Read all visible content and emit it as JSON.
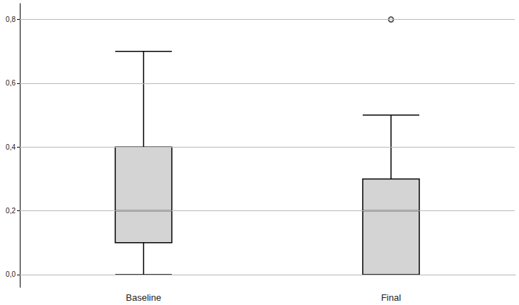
{
  "chart_data": {
    "type": "boxplot",
    "categories": [
      "Baseline",
      "Final"
    ],
    "boxes": [
      [
        0,
        0.1,
        0.2,
        0.4,
        0.7
      ],
      [
        0,
        0,
        0.2,
        0.3,
        0.5
      ]
    ],
    "outliers": [
      {
        "category": "Final",
        "value": 0.8
      }
    ],
    "ylim": [
      -0.04,
      0.85
    ],
    "yticks": [
      {
        "value": 0,
        "label": "0,0"
      },
      {
        "value": 0.2,
        "label": "0,2"
      },
      {
        "value": 0.4,
        "label": "0,4"
      },
      {
        "value": 0.6,
        "label": "0,6"
      },
      {
        "value": 0.8,
        "label": "0,8"
      }
    ],
    "grid": true,
    "color": "#d4d4d4",
    "marker": "circle"
  }
}
